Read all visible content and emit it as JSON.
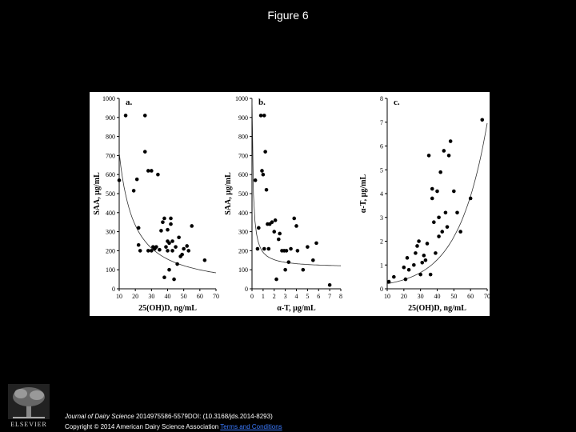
{
  "slide": {
    "title": "Figure 6"
  },
  "footer": {
    "journal": "Journal of Dairy Science",
    "citation": " 2014975586-5579DOI: (10.3168/jds.2014-8293)",
    "copyright": "Copyright © 2014 American Dairy Science Association",
    "terms_link": "Terms and Conditions"
  },
  "logo": {
    "name": "ELSEVIER",
    "icon": "elsevier-tree-icon"
  },
  "colors": {
    "background": "#000000",
    "panel": "#ffffff",
    "ink": "#000000",
    "link": "#3b7bff"
  },
  "chart_data": [
    {
      "type": "scatter",
      "panel_label": "a.",
      "xlabel": "25(OH)D, ng/mL",
      "ylabel": "SAA, µg/mL",
      "xlim": [
        10,
        70
      ],
      "ylim": [
        0,
        1000
      ],
      "xticks": [
        10,
        20,
        30,
        40,
        50,
        60,
        70
      ],
      "yticks": [
        0,
        100,
        200,
        300,
        400,
        500,
        600,
        700,
        800,
        900,
        1000
      ],
      "trendline": "decay",
      "x": [
        10,
        14,
        19,
        21,
        22,
        22,
        23,
        26,
        26,
        28,
        28,
        30,
        30,
        31,
        32,
        33,
        34,
        35,
        36,
        37,
        38,
        38,
        39,
        40,
        40,
        40,
        41,
        41,
        42,
        42,
        43,
        43,
        44,
        45,
        46,
        47,
        48,
        49,
        50,
        52,
        53,
        55,
        63
      ],
      "y": [
        570,
        910,
        515,
        575,
        230,
        320,
        200,
        910,
        720,
        620,
        200,
        200,
        620,
        220,
        210,
        220,
        600,
        205,
        305,
        350,
        370,
        60,
        220,
        250,
        310,
        200,
        240,
        100,
        340,
        370,
        250,
        200,
        50,
        220,
        130,
        270,
        170,
        180,
        210,
        225,
        200,
        330,
        150
      ]
    },
    {
      "type": "scatter",
      "panel_label": "b.",
      "xlabel": "α-T, µg/mL",
      "ylabel": "SAA, µg/mL",
      "xlim": [
        0,
        8
      ],
      "ylim": [
        0,
        1000
      ],
      "xticks": [
        0,
        1,
        2,
        3,
        4,
        5,
        6,
        7,
        8
      ],
      "yticks": [
        0,
        100,
        200,
        300,
        400,
        500,
        600,
        700,
        800,
        900,
        1000
      ],
      "trendline": "decay",
      "x": [
        0.3,
        0.5,
        0.6,
        0.8,
        0.9,
        1.0,
        1.1,
        1.1,
        1.2,
        1.3,
        1.4,
        1.5,
        1.6,
        1.8,
        2.0,
        2.1,
        2.2,
        2.4,
        2.5,
        2.7,
        2.9,
        3.0,
        3.1,
        3.3,
        3.5,
        3.8,
        4.0,
        4.1,
        4.6,
        5.0,
        5.5,
        5.8,
        7.0
      ],
      "y": [
        570,
        210,
        320,
        910,
        620,
        600,
        910,
        210,
        720,
        520,
        340,
        210,
        340,
        350,
        300,
        360,
        50,
        260,
        290,
        200,
        200,
        100,
        200,
        140,
        210,
        370,
        330,
        200,
        100,
        220,
        150,
        240,
        20
      ]
    },
    {
      "type": "scatter",
      "panel_label": "c.",
      "xlabel": "25(OH)D, ng/mL",
      "ylabel": "α-T, µg/mL",
      "xlim": [
        10,
        70
      ],
      "ylim": [
        0,
        8
      ],
      "xticks": [
        10,
        20,
        30,
        40,
        50,
        60,
        70
      ],
      "yticks": [
        0,
        1,
        2,
        3,
        4,
        5,
        6,
        7,
        8
      ],
      "trendline": "growth",
      "x": [
        11,
        14,
        20,
        21,
        22,
        23,
        26,
        27,
        28,
        29,
        30,
        31,
        32,
        33,
        34,
        35,
        36,
        37,
        37,
        38,
        39,
        40,
        41,
        41,
        42,
        43,
        44,
        45,
        46,
        47,
        48,
        50,
        52,
        54,
        60,
        67
      ],
      "y": [
        0.3,
        0.5,
        0.9,
        0.4,
        1.3,
        0.8,
        1.0,
        1.5,
        1.8,
        2.0,
        0.6,
        1.1,
        1.4,
        1.2,
        1.9,
        5.6,
        0.6,
        3.8,
        4.2,
        2.8,
        1.5,
        4.1,
        2.2,
        3.0,
        4.9,
        2.4,
        5.8,
        3.2,
        2.6,
        5.6,
        6.2,
        4.1,
        3.2,
        2.4,
        3.8,
        7.1
      ]
    }
  ]
}
